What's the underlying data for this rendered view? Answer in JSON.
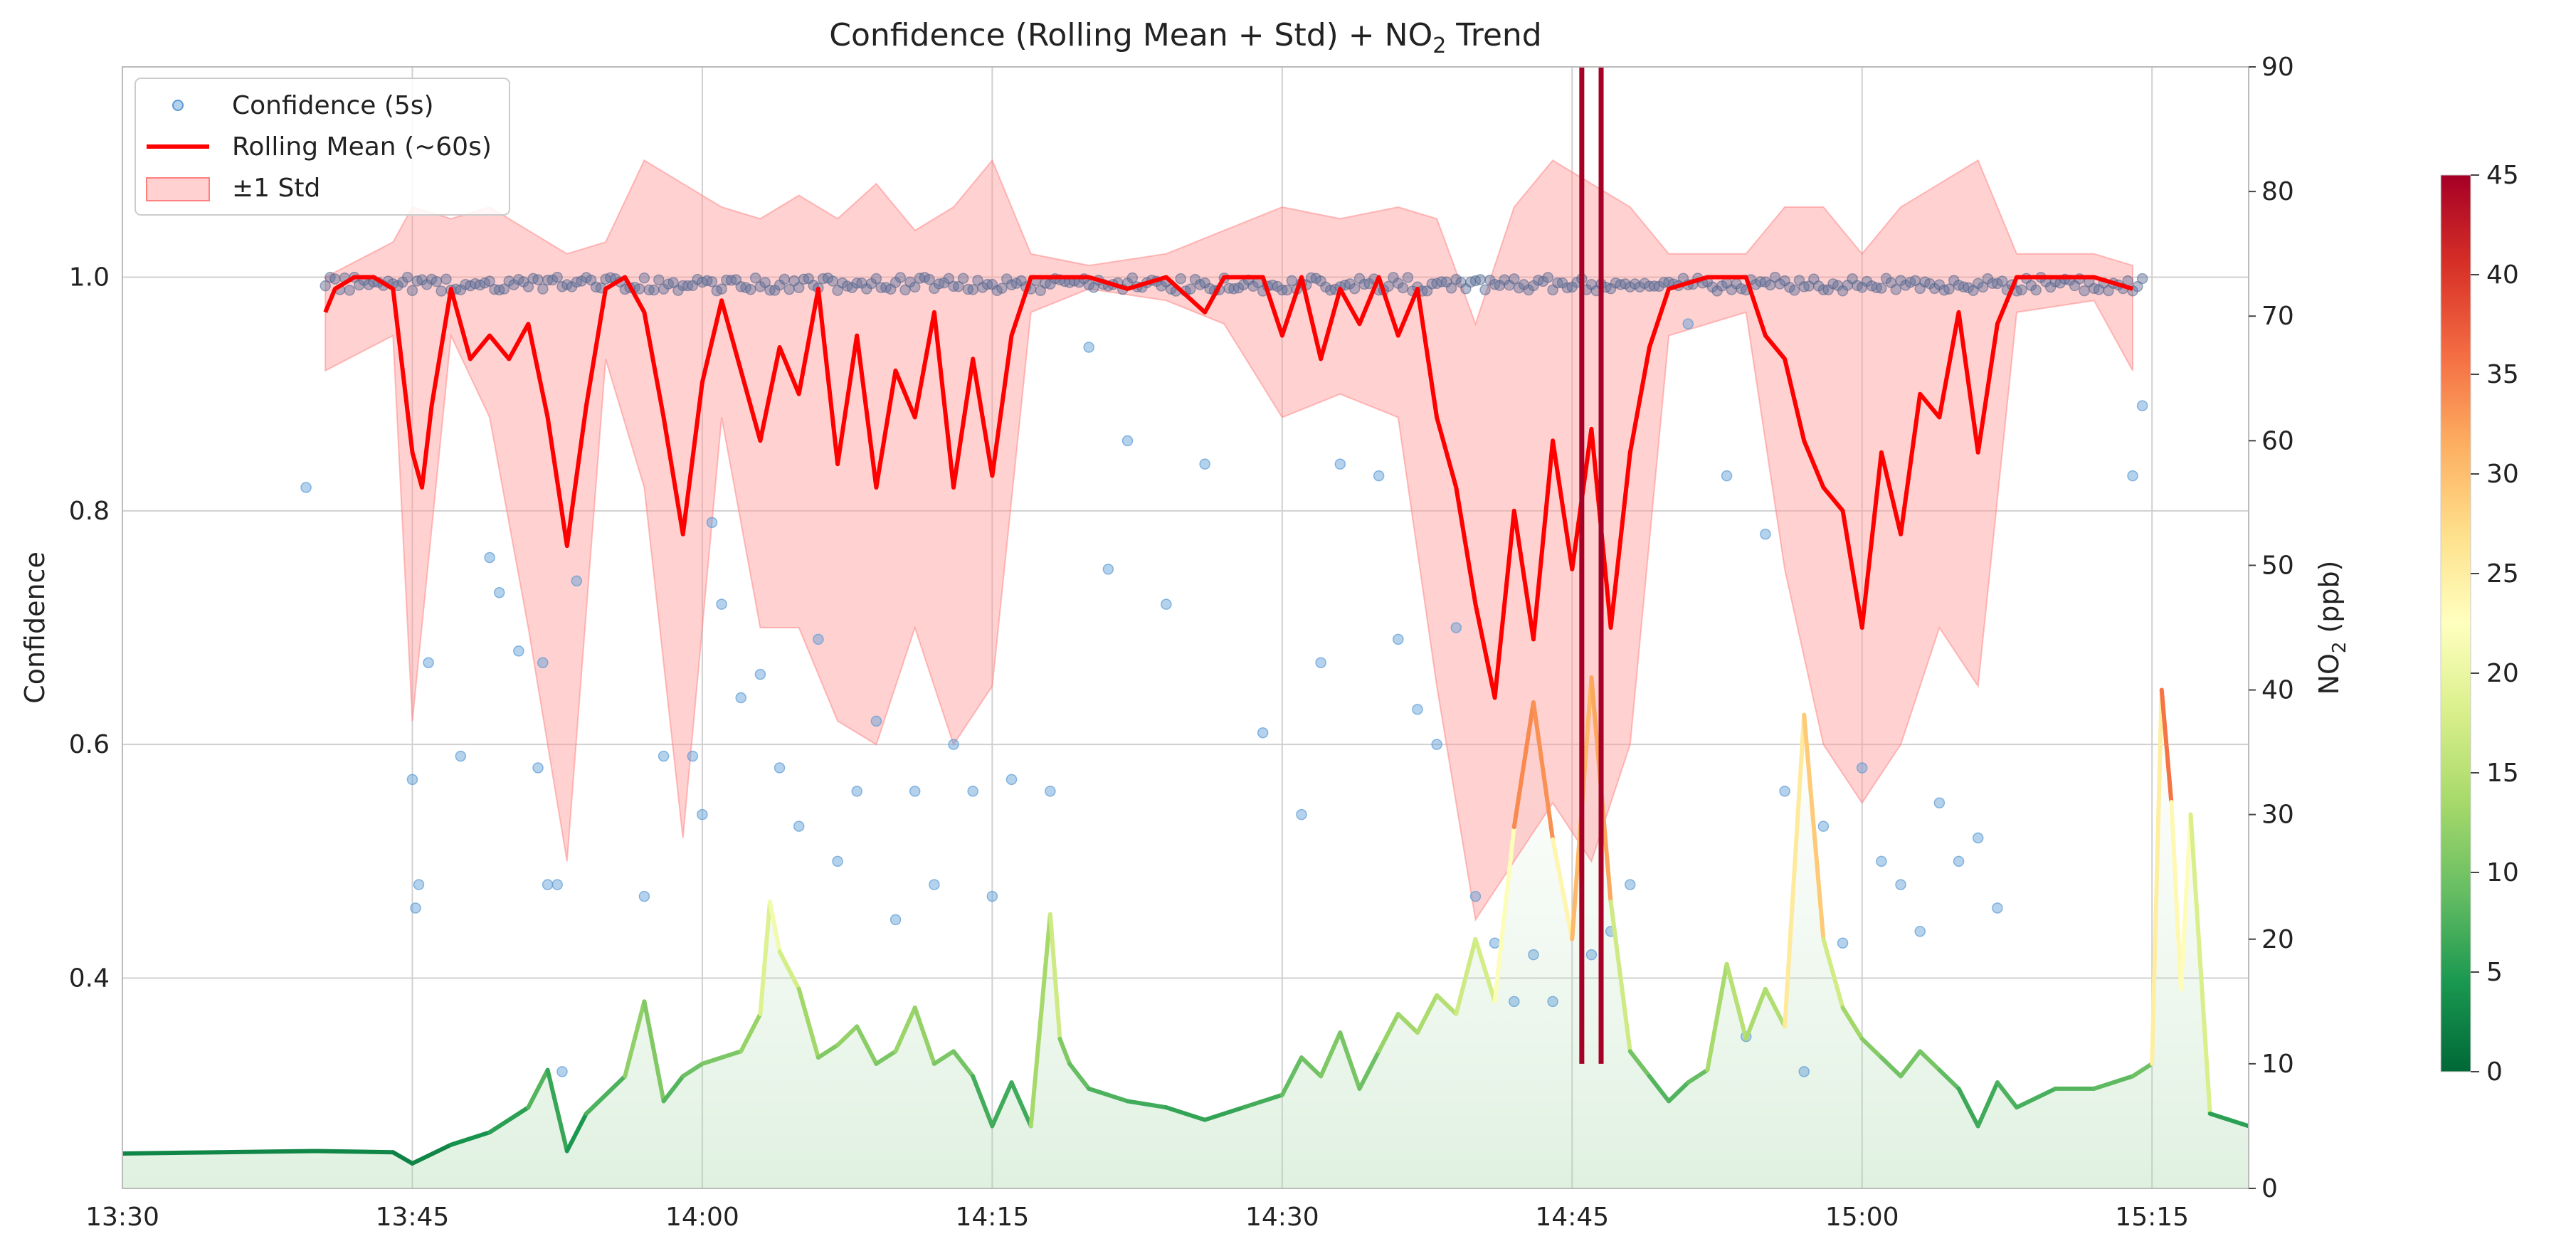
{
  "chart_data": {
    "type": "scatter",
    "title": "Confidence (Rolling Mean + Std) + NO₂ Trend",
    "title_main": "Confidence (Rolling Mean + Std) + NO",
    "title_sub": "2",
    "title_tail": " Trend",
    "ylabel_left": "Confidence",
    "ylabel_right": "NO₂ (ppb)",
    "ylabel_right_main": "NO",
    "ylabel_right_sub": "2",
    "ylabel_right_tail": " (ppb)",
    "grid": true,
    "legend_position": "top-left",
    "legend": [
      {
        "label": "Confidence (5s)",
        "kind": "scatter",
        "color": "#5b9bd5"
      },
      {
        "label": "Rolling Mean (~60s)",
        "kind": "line",
        "color": "#ff0000"
      },
      {
        "label": "±1 Std",
        "kind": "band",
        "color": "#ffb3b3"
      }
    ],
    "x_axis": {
      "min": "13:30",
      "max": "15:20",
      "ticks": [
        "13:30",
        "13:45",
        "14:00",
        "14:15",
        "14:30",
        "14:45",
        "15:00",
        "15:15"
      ]
    },
    "y_left": {
      "min": 0.22,
      "max": 1.18,
      "ticks": [
        0.4,
        0.6,
        0.8,
        1.0
      ],
      "tick_labels": [
        "0.4",
        "0.6",
        "0.8",
        "1.0"
      ]
    },
    "y_right": {
      "min": 0,
      "max": 90,
      "ticks": [
        0,
        10,
        20,
        30,
        40,
        50,
        60,
        70,
        80,
        90
      ],
      "tick_labels": [
        "0",
        "10",
        "20",
        "30",
        "40",
        "50",
        "60",
        "70",
        "80",
        "90"
      ]
    },
    "colorbar": {
      "min": 0,
      "max": 45,
      "ticks": [
        0,
        5,
        10,
        15,
        20,
        25,
        30,
        35,
        40,
        45
      ],
      "tick_labels": [
        "0",
        "5",
        "10",
        "15",
        "20",
        "25",
        "30",
        "35",
        "40",
        "45"
      ],
      "colormap": "RdYlGn_r"
    },
    "rolling_mean": [
      {
        "t": "13:40:30",
        "v": 0.97
      },
      {
        "t": "13:41",
        "v": 0.99
      },
      {
        "t": "13:42",
        "v": 1.0
      },
      {
        "t": "13:43",
        "v": 1.0
      },
      {
        "t": "13:44",
        "v": 0.99
      },
      {
        "t": "13:45",
        "v": 0.85
      },
      {
        "t": "13:45:30",
        "v": 0.82
      },
      {
        "t": "13:46",
        "v": 0.89
      },
      {
        "t": "13:47",
        "v": 0.99
      },
      {
        "t": "13:48",
        "v": 0.93
      },
      {
        "t": "13:49",
        "v": 0.95
      },
      {
        "t": "13:50",
        "v": 0.93
      },
      {
        "t": "13:51",
        "v": 0.96
      },
      {
        "t": "13:52",
        "v": 0.88
      },
      {
        "t": "13:53",
        "v": 0.77
      },
      {
        "t": "13:54",
        "v": 0.89
      },
      {
        "t": "13:55",
        "v": 0.99
      },
      {
        "t": "13:56",
        "v": 1.0
      },
      {
        "t": "13:57",
        "v": 0.97
      },
      {
        "t": "13:58",
        "v": 0.88
      },
      {
        "t": "13:59",
        "v": 0.78
      },
      {
        "t": "14:00",
        "v": 0.91
      },
      {
        "t": "14:01",
        "v": 0.98
      },
      {
        "t": "14:02",
        "v": 0.92
      },
      {
        "t": "14:03",
        "v": 0.86
      },
      {
        "t": "14:04",
        "v": 0.94
      },
      {
        "t": "14:05",
        "v": 0.9
      },
      {
        "t": "14:06",
        "v": 0.99
      },
      {
        "t": "14:07",
        "v": 0.84
      },
      {
        "t": "14:08",
        "v": 0.95
      },
      {
        "t": "14:09",
        "v": 0.82
      },
      {
        "t": "14:10",
        "v": 0.92
      },
      {
        "t": "14:11",
        "v": 0.88
      },
      {
        "t": "14:12",
        "v": 0.97
      },
      {
        "t": "14:13",
        "v": 0.82
      },
      {
        "t": "14:14",
        "v": 0.93
      },
      {
        "t": "14:15",
        "v": 0.83
      },
      {
        "t": "14:16",
        "v": 0.95
      },
      {
        "t": "14:17",
        "v": 1.0
      },
      {
        "t": "14:18",
        "v": 1.0
      },
      {
        "t": "14:20",
        "v": 1.0
      },
      {
        "t": "14:22",
        "v": 0.99
      },
      {
        "t": "14:24",
        "v": 1.0
      },
      {
        "t": "14:26",
        "v": 0.97
      },
      {
        "t": "14:27",
        "v": 1.0
      },
      {
        "t": "14:29",
        "v": 1.0
      },
      {
        "t": "14:30",
        "v": 0.95
      },
      {
        "t": "14:31",
        "v": 1.0
      },
      {
        "t": "14:32",
        "v": 0.93
      },
      {
        "t": "14:33",
        "v": 0.99
      },
      {
        "t": "14:34",
        "v": 0.96
      },
      {
        "t": "14:35",
        "v": 1.0
      },
      {
        "t": "14:36",
        "v": 0.95
      },
      {
        "t": "14:37",
        "v": 0.99
      },
      {
        "t": "14:38",
        "v": 0.88
      },
      {
        "t": "14:39",
        "v": 0.82
      },
      {
        "t": "14:40",
        "v": 0.72
      },
      {
        "t": "14:41",
        "v": 0.64
      },
      {
        "t": "14:42",
        "v": 0.8
      },
      {
        "t": "14:43",
        "v": 0.69
      },
      {
        "t": "14:44",
        "v": 0.86
      },
      {
        "t": "14:45",
        "v": 0.75
      },
      {
        "t": "14:46",
        "v": 0.87
      },
      {
        "t": "14:47",
        "v": 0.7
      },
      {
        "t": "14:48",
        "v": 0.85
      },
      {
        "t": "14:49",
        "v": 0.94
      },
      {
        "t": "14:50",
        "v": 0.99
      },
      {
        "t": "14:52",
        "v": 1.0
      },
      {
        "t": "14:54",
        "v": 1.0
      },
      {
        "t": "14:55",
        "v": 0.95
      },
      {
        "t": "14:56",
        "v": 0.93
      },
      {
        "t": "14:57",
        "v": 0.86
      },
      {
        "t": "14:58",
        "v": 0.82
      },
      {
        "t": "14:59",
        "v": 0.8
      },
      {
        "t": "15:00",
        "v": 0.7
      },
      {
        "t": "15:01",
        "v": 0.85
      },
      {
        "t": "15:02",
        "v": 0.78
      },
      {
        "t": "15:03",
        "v": 0.9
      },
      {
        "t": "15:04",
        "v": 0.88
      },
      {
        "t": "15:05",
        "v": 0.97
      },
      {
        "t": "15:06",
        "v": 0.85
      },
      {
        "t": "15:07",
        "v": 0.96
      },
      {
        "t": "15:08",
        "v": 1.0
      },
      {
        "t": "15:10",
        "v": 1.0
      },
      {
        "t": "15:12",
        "v": 1.0
      },
      {
        "t": "15:14",
        "v": 0.99
      }
    ],
    "std_band": [
      {
        "t": "13:40:30",
        "lo": 0.92,
        "hi": 1.0
      },
      {
        "t": "13:44",
        "lo": 0.95,
        "hi": 1.03
      },
      {
        "t": "13:45",
        "lo": 0.62,
        "hi": 1.06
      },
      {
        "t": "13:47",
        "lo": 0.95,
        "hi": 1.05
      },
      {
        "t": "13:49",
        "lo": 0.88,
        "hi": 1.06
      },
      {
        "t": "13:51",
        "lo": 0.7,
        "hi": 1.04
      },
      {
        "t": "13:53",
        "lo": 0.5,
        "hi": 1.02
      },
      {
        "t": "13:55",
        "lo": 0.93,
        "hi": 1.03
      },
      {
        "t": "13:57",
        "lo": 0.82,
        "hi": 1.1
      },
      {
        "t": "13:59",
        "lo": 0.52,
        "hi": 1.08
      },
      {
        "t": "14:01",
        "lo": 0.88,
        "hi": 1.06
      },
      {
        "t": "14:03",
        "lo": 0.7,
        "hi": 1.05
      },
      {
        "t": "14:05",
        "lo": 0.7,
        "hi": 1.07
      },
      {
        "t": "14:07",
        "lo": 0.62,
        "hi": 1.05
      },
      {
        "t": "14:09",
        "lo": 0.6,
        "hi": 1.08
      },
      {
        "t": "14:11",
        "lo": 0.7,
        "hi": 1.04
      },
      {
        "t": "14:13",
        "lo": 0.6,
        "hi": 1.06
      },
      {
        "t": "14:15",
        "lo": 0.65,
        "hi": 1.1
      },
      {
        "t": "14:17",
        "lo": 0.97,
        "hi": 1.02
      },
      {
        "t": "14:20",
        "lo": 0.99,
        "hi": 1.01
      },
      {
        "t": "14:24",
        "lo": 0.98,
        "hi": 1.02
      },
      {
        "t": "14:27",
        "lo": 0.96,
        "hi": 1.04
      },
      {
        "t": "14:30",
        "lo": 0.88,
        "hi": 1.06
      },
      {
        "t": "14:33",
        "lo": 0.9,
        "hi": 1.05
      },
      {
        "t": "14:36",
        "lo": 0.88,
        "hi": 1.06
      },
      {
        "t": "14:38",
        "lo": 0.65,
        "hi": 1.05
      },
      {
        "t": "14:40",
        "lo": 0.45,
        "hi": 0.96
      },
      {
        "t": "14:42",
        "lo": 0.5,
        "hi": 1.06
      },
      {
        "t": "14:44",
        "lo": 0.55,
        "hi": 1.1
      },
      {
        "t": "14:46",
        "lo": 0.5,
        "hi": 1.08
      },
      {
        "t": "14:48",
        "lo": 0.6,
        "hi": 1.06
      },
      {
        "t": "14:50",
        "lo": 0.95,
        "hi": 1.02
      },
      {
        "t": "14:54",
        "lo": 0.97,
        "hi": 1.02
      },
      {
        "t": "14:56",
        "lo": 0.75,
        "hi": 1.06
      },
      {
        "t": "14:58",
        "lo": 0.6,
        "hi": 1.06
      },
      {
        "t": "15:00",
        "lo": 0.55,
        "hi": 1.02
      },
      {
        "t": "15:02",
        "lo": 0.6,
        "hi": 1.06
      },
      {
        "t": "15:04",
        "lo": 0.7,
        "hi": 1.08
      },
      {
        "t": "15:06",
        "lo": 0.65,
        "hi": 1.1
      },
      {
        "t": "15:08",
        "lo": 0.97,
        "hi": 1.02
      },
      {
        "t": "15:12",
        "lo": 0.98,
        "hi": 1.02
      },
      {
        "t": "15:14",
        "lo": 0.92,
        "hi": 1.01
      }
    ],
    "confidence_points_outliers": [
      {
        "t": "13:39:30",
        "v": 0.82
      },
      {
        "t": "13:45",
        "v": 0.57
      },
      {
        "t": "13:45:20",
        "v": 0.48
      },
      {
        "t": "13:45:10",
        "v": 0.46
      },
      {
        "t": "13:45:50",
        "v": 0.67
      },
      {
        "t": "13:47:30",
        "v": 0.59
      },
      {
        "t": "13:49",
        "v": 0.76
      },
      {
        "t": "13:49:30",
        "v": 0.73
      },
      {
        "t": "13:50:30",
        "v": 0.68
      },
      {
        "t": "13:51:30",
        "v": 0.58
      },
      {
        "t": "13:51:45",
        "v": 0.67
      },
      {
        "t": "13:52",
        "v": 0.48
      },
      {
        "t": "13:52:30",
        "v": 0.48
      },
      {
        "t": "13:53:30",
        "v": 0.74
      },
      {
        "t": "13:52:45",
        "v": 0.32
      },
      {
        "t": "13:57",
        "v": 0.47
      },
      {
        "t": "13:58",
        "v": 0.59
      },
      {
        "t": "13:59:30",
        "v": 0.59
      },
      {
        "t": "14:00",
        "v": 0.54
      },
      {
        "t": "14:00:30",
        "v": 0.79
      },
      {
        "t": "14:01",
        "v": 0.72
      },
      {
        "t": "14:02",
        "v": 0.64
      },
      {
        "t": "14:03",
        "v": 0.66
      },
      {
        "t": "14:04",
        "v": 0.58
      },
      {
        "t": "14:05",
        "v": 0.53
      },
      {
        "t": "14:06",
        "v": 0.69
      },
      {
        "t": "14:07",
        "v": 0.5
      },
      {
        "t": "14:08",
        "v": 0.56
      },
      {
        "t": "14:09",
        "v": 0.62
      },
      {
        "t": "14:10",
        "v": 0.45
      },
      {
        "t": "14:11",
        "v": 0.56
      },
      {
        "t": "14:12",
        "v": 0.48
      },
      {
        "t": "14:13",
        "v": 0.6
      },
      {
        "t": "14:14",
        "v": 0.56
      },
      {
        "t": "14:15",
        "v": 0.47
      },
      {
        "t": "14:16",
        "v": 0.57
      },
      {
        "t": "14:18",
        "v": 0.56
      },
      {
        "t": "14:20",
        "v": 0.94
      },
      {
        "t": "14:21",
        "v": 0.75
      },
      {
        "t": "14:22",
        "v": 0.86
      },
      {
        "t": "14:24",
        "v": 0.72
      },
      {
        "t": "14:26",
        "v": 0.84
      },
      {
        "t": "14:29",
        "v": 0.61
      },
      {
        "t": "14:31",
        "v": 0.54
      },
      {
        "t": "14:32",
        "v": 0.67
      },
      {
        "t": "14:33",
        "v": 0.84
      },
      {
        "t": "14:35",
        "v": 0.83
      },
      {
        "t": "14:36",
        "v": 0.69
      },
      {
        "t": "14:37",
        "v": 0.63
      },
      {
        "t": "14:38",
        "v": 0.6
      },
      {
        "t": "14:39",
        "v": 0.7
      },
      {
        "t": "14:40",
        "v": 0.47
      },
      {
        "t": "14:41",
        "v": 0.43
      },
      {
        "t": "14:42",
        "v": 0.38
      },
      {
        "t": "14:43",
        "v": 0.42
      },
      {
        "t": "14:44",
        "v": 0.38
      },
      {
        "t": "14:46",
        "v": 0.42
      },
      {
        "t": "14:47",
        "v": 0.44
      },
      {
        "t": "14:48",
        "v": 0.48
      },
      {
        "t": "14:51",
        "v": 0.96
      },
      {
        "t": "14:53",
        "v": 0.83
      },
      {
        "t": "14:54",
        "v": 0.35
      },
      {
        "t": "14:55",
        "v": 0.78
      },
      {
        "t": "14:56",
        "v": 0.56
      },
      {
        "t": "14:57",
        "v": 0.32
      },
      {
        "t": "14:58",
        "v": 0.53
      },
      {
        "t": "14:59",
        "v": 0.43
      },
      {
        "t": "15:00",
        "v": 0.58
      },
      {
        "t": "15:01",
        "v": 0.5
      },
      {
        "t": "15:02",
        "v": 0.48
      },
      {
        "t": "15:03",
        "v": 0.44
      },
      {
        "t": "15:04",
        "v": 0.55
      },
      {
        "t": "15:05",
        "v": 0.5
      },
      {
        "t": "15:06",
        "v": 0.52
      },
      {
        "t": "15:07",
        "v": 0.46
      },
      {
        "t": "15:14",
        "v": 0.83
      },
      {
        "t": "15:14:30",
        "v": 0.89
      }
    ],
    "no2_trend": [
      {
        "t": "13:30",
        "v": 2.8
      },
      {
        "t": "13:35",
        "v": 2.9
      },
      {
        "t": "13:40",
        "v": 3.0
      },
      {
        "t": "13:44",
        "v": 2.9
      },
      {
        "t": "13:45",
        "v": 2.0
      },
      {
        "t": "13:47",
        "v": 3.5
      },
      {
        "t": "13:49",
        "v": 4.5
      },
      {
        "t": "13:51",
        "v": 6.5
      },
      {
        "t": "13:52",
        "v": 9.5
      },
      {
        "t": "13:53",
        "v": 3.0
      },
      {
        "t": "13:54",
        "v": 6.0
      },
      {
        "t": "13:56",
        "v": 9.0
      },
      {
        "t": "13:57",
        "v": 15.0
      },
      {
        "t": "13:58",
        "v": 7.0
      },
      {
        "t": "13:59",
        "v": 9.0
      },
      {
        "t": "14:00",
        "v": 10.0
      },
      {
        "t": "14:02",
        "v": 11.0
      },
      {
        "t": "14:03",
        "v": 14.0
      },
      {
        "t": "14:03:30",
        "v": 23.0
      },
      {
        "t": "14:04",
        "v": 19.0
      },
      {
        "t": "14:05",
        "v": 16.0
      },
      {
        "t": "14:06",
        "v": 10.5
      },
      {
        "t": "14:07",
        "v": 11.5
      },
      {
        "t": "14:08",
        "v": 13.0
      },
      {
        "t": "14:09",
        "v": 10.0
      },
      {
        "t": "14:10",
        "v": 11.0
      },
      {
        "t": "14:11",
        "v": 14.5
      },
      {
        "t": "14:12",
        "v": 10.0
      },
      {
        "t": "14:13",
        "v": 11.0
      },
      {
        "t": "14:14",
        "v": 9.0
      },
      {
        "t": "14:15",
        "v": 5.0
      },
      {
        "t": "14:16",
        "v": 8.5
      },
      {
        "t": "14:17",
        "v": 5.0
      },
      {
        "t": "14:18",
        "v": 22.0
      },
      {
        "t": "14:18:30",
        "v": 12.0
      },
      {
        "t": "14:19",
        "v": 10.0
      },
      {
        "t": "14:20",
        "v": 8.0
      },
      {
        "t": "14:22",
        "v": 7.0
      },
      {
        "t": "14:24",
        "v": 6.5
      },
      {
        "t": "14:26",
        "v": 5.5
      },
      {
        "t": "14:28",
        "v": 6.5
      },
      {
        "t": "14:30",
        "v": 7.5
      },
      {
        "t": "14:31",
        "v": 10.5
      },
      {
        "t": "14:32",
        "v": 9.0
      },
      {
        "t": "14:33",
        "v": 12.5
      },
      {
        "t": "14:34",
        "v": 8.0
      },
      {
        "t": "14:35",
        "v": 11.0
      },
      {
        "t": "14:36",
        "v": 14.0
      },
      {
        "t": "14:37",
        "v": 12.5
      },
      {
        "t": "14:38",
        "v": 15.5
      },
      {
        "t": "14:39",
        "v": 14.0
      },
      {
        "t": "14:40",
        "v": 20.0
      },
      {
        "t": "14:41",
        "v": 15.0
      },
      {
        "t": "14:42",
        "v": 29.0
      },
      {
        "t": "14:43",
        "v": 39.0
      },
      {
        "t": "14:44",
        "v": 28.0
      },
      {
        "t": "14:45",
        "v": 20.0
      },
      {
        "t": "14:46",
        "v": 41.0
      },
      {
        "t": "14:47",
        "v": 23.0
      },
      {
        "t": "14:48",
        "v": 11.0
      },
      {
        "t": "14:49",
        "v": 9.0
      },
      {
        "t": "14:50",
        "v": 7.0
      },
      {
        "t": "14:51",
        "v": 8.5
      },
      {
        "t": "14:52",
        "v": 9.5
      },
      {
        "t": "14:53",
        "v": 18.0
      },
      {
        "t": "14:54",
        "v": 12.0
      },
      {
        "t": "14:55",
        "v": 16.0
      },
      {
        "t": "14:56",
        "v": 13.0
      },
      {
        "t": "14:57",
        "v": 38.0
      },
      {
        "t": "14:58",
        "v": 20.0
      },
      {
        "t": "14:59",
        "v": 14.5
      },
      {
        "t": "15:00",
        "v": 12.0
      },
      {
        "t": "15:01",
        "v": 10.5
      },
      {
        "t": "15:02",
        "v": 9.0
      },
      {
        "t": "15:03",
        "v": 11.0
      },
      {
        "t": "15:04",
        "v": 9.5
      },
      {
        "t": "15:05",
        "v": 8.0
      },
      {
        "t": "15:06",
        "v": 5.0
      },
      {
        "t": "15:07",
        "v": 8.5
      },
      {
        "t": "15:08",
        "v": 6.5
      },
      {
        "t": "15:10",
        "v": 8.0
      },
      {
        "t": "15:12",
        "v": 8.0
      },
      {
        "t": "15:14",
        "v": 9.0
      },
      {
        "t": "15:15",
        "v": 10.0
      },
      {
        "t": "15:15:30",
        "v": 40.0
      },
      {
        "t": "15:16",
        "v": 31.0
      },
      {
        "t": "15:16:30",
        "v": 16.0
      },
      {
        "t": "15:17",
        "v": 30.0
      },
      {
        "t": "15:18",
        "v": 6.0
      },
      {
        "t": "15:20",
        "v": 5.0
      }
    ],
    "no2_spikes_to_top": [
      "14:45:30",
      "14:46:30"
    ]
  }
}
